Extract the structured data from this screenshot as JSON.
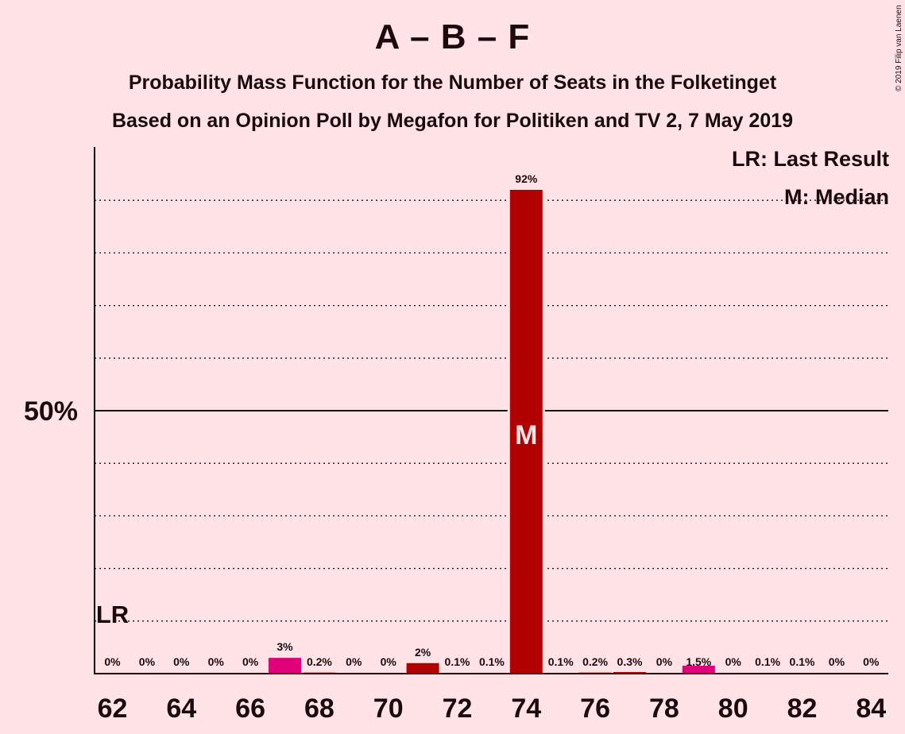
{
  "title": "A – B – F",
  "subtitle1": "Probability Mass Function for the Number of Seats in the Folketinget",
  "subtitle2": "Based on an Opinion Poll by Megafon for Politiken and TV 2, 7 May 2019",
  "copyright": "© 2019 Filip van Laenen",
  "legend": {
    "last_result": "LR: Last Result",
    "median": "M: Median"
  },
  "colors": {
    "background": "#ffe3e6",
    "bar_main": "#b00000",
    "bar_alt": "#e0007a",
    "text": "#1a0a10"
  },
  "chart_data": {
    "type": "bar",
    "x": [
      62,
      63,
      64,
      65,
      66,
      67,
      68,
      69,
      70,
      71,
      72,
      73,
      74,
      75,
      76,
      77,
      78,
      79,
      80,
      81,
      82,
      83,
      84
    ],
    "values": [
      0,
      0,
      0,
      0,
      0,
      3,
      0.2,
      0,
      0,
      2,
      0.1,
      0.1,
      92,
      0.1,
      0.2,
      0.3,
      0,
      1.5,
      0,
      0.1,
      0.1,
      0,
      0
    ],
    "value_labels": [
      "0%",
      "0%",
      "0%",
      "0%",
      "0%",
      "3%",
      "0.2%",
      "0%",
      "0%",
      "2%",
      "0.1%",
      "0.1%",
      "92%",
      "0.1%",
      "0.2%",
      "0.3%",
      "0%",
      "1.5%",
      "0%",
      "0.1%",
      "0.1%",
      "0%",
      "0%"
    ],
    "bar_color_keys": [
      "main",
      "main",
      "main",
      "main",
      "main",
      "alt",
      "main",
      "main",
      "main",
      "main",
      "main",
      "main",
      "main",
      "main",
      "main",
      "main",
      "main",
      "alt",
      "main",
      "main",
      "main",
      "main",
      "main"
    ],
    "x_tick_labels": [
      "62",
      "64",
      "66",
      "68",
      "70",
      "72",
      "74",
      "76",
      "78",
      "80",
      "82",
      "84"
    ],
    "x_tick_values": [
      62,
      64,
      66,
      68,
      70,
      72,
      74,
      76,
      78,
      80,
      82,
      84
    ],
    "y_tick_label": "50%",
    "y_tick_value": 50,
    "ylim": [
      0,
      100
    ],
    "y_grid_step": 10,
    "last_result_seat": 62,
    "last_result_label": "LR",
    "median_seat": 74,
    "median_label": "M",
    "legend_position": "top-right"
  }
}
